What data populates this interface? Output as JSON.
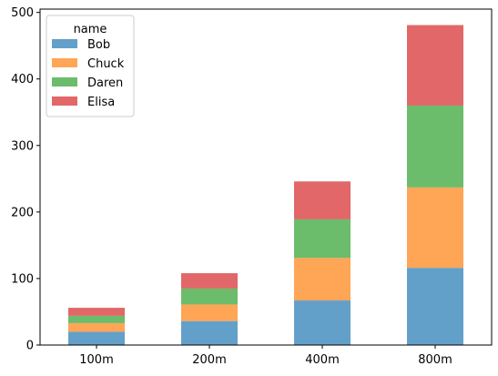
{
  "chart_data": {
    "type": "bar",
    "stacked": true,
    "categories": [
      "100m",
      "200m",
      "400m",
      "800m"
    ],
    "series": [
      {
        "name": "Bob",
        "values": [
          20,
          36,
          67,
          116
        ],
        "color": "#1f77b4"
      },
      {
        "name": "Chuck",
        "values": [
          13,
          25,
          64,
          121
        ],
        "color": "#ff7f0e"
      },
      {
        "name": "Daren",
        "values": [
          11,
          24,
          58,
          123
        ],
        "color": "#2ca02c"
      },
      {
        "name": "Elisa",
        "values": [
          12,
          23,
          57,
          121
        ],
        "color": "#d62728"
      }
    ],
    "bar_alpha": 0.7,
    "title": "",
    "xlabel": "",
    "ylabel": "",
    "ylim": [
      0,
      505
    ],
    "yticks": [
      0,
      100,
      200,
      300,
      400,
      500
    ],
    "grid": false,
    "legend": {
      "title": "name",
      "position": "top-left"
    }
  }
}
